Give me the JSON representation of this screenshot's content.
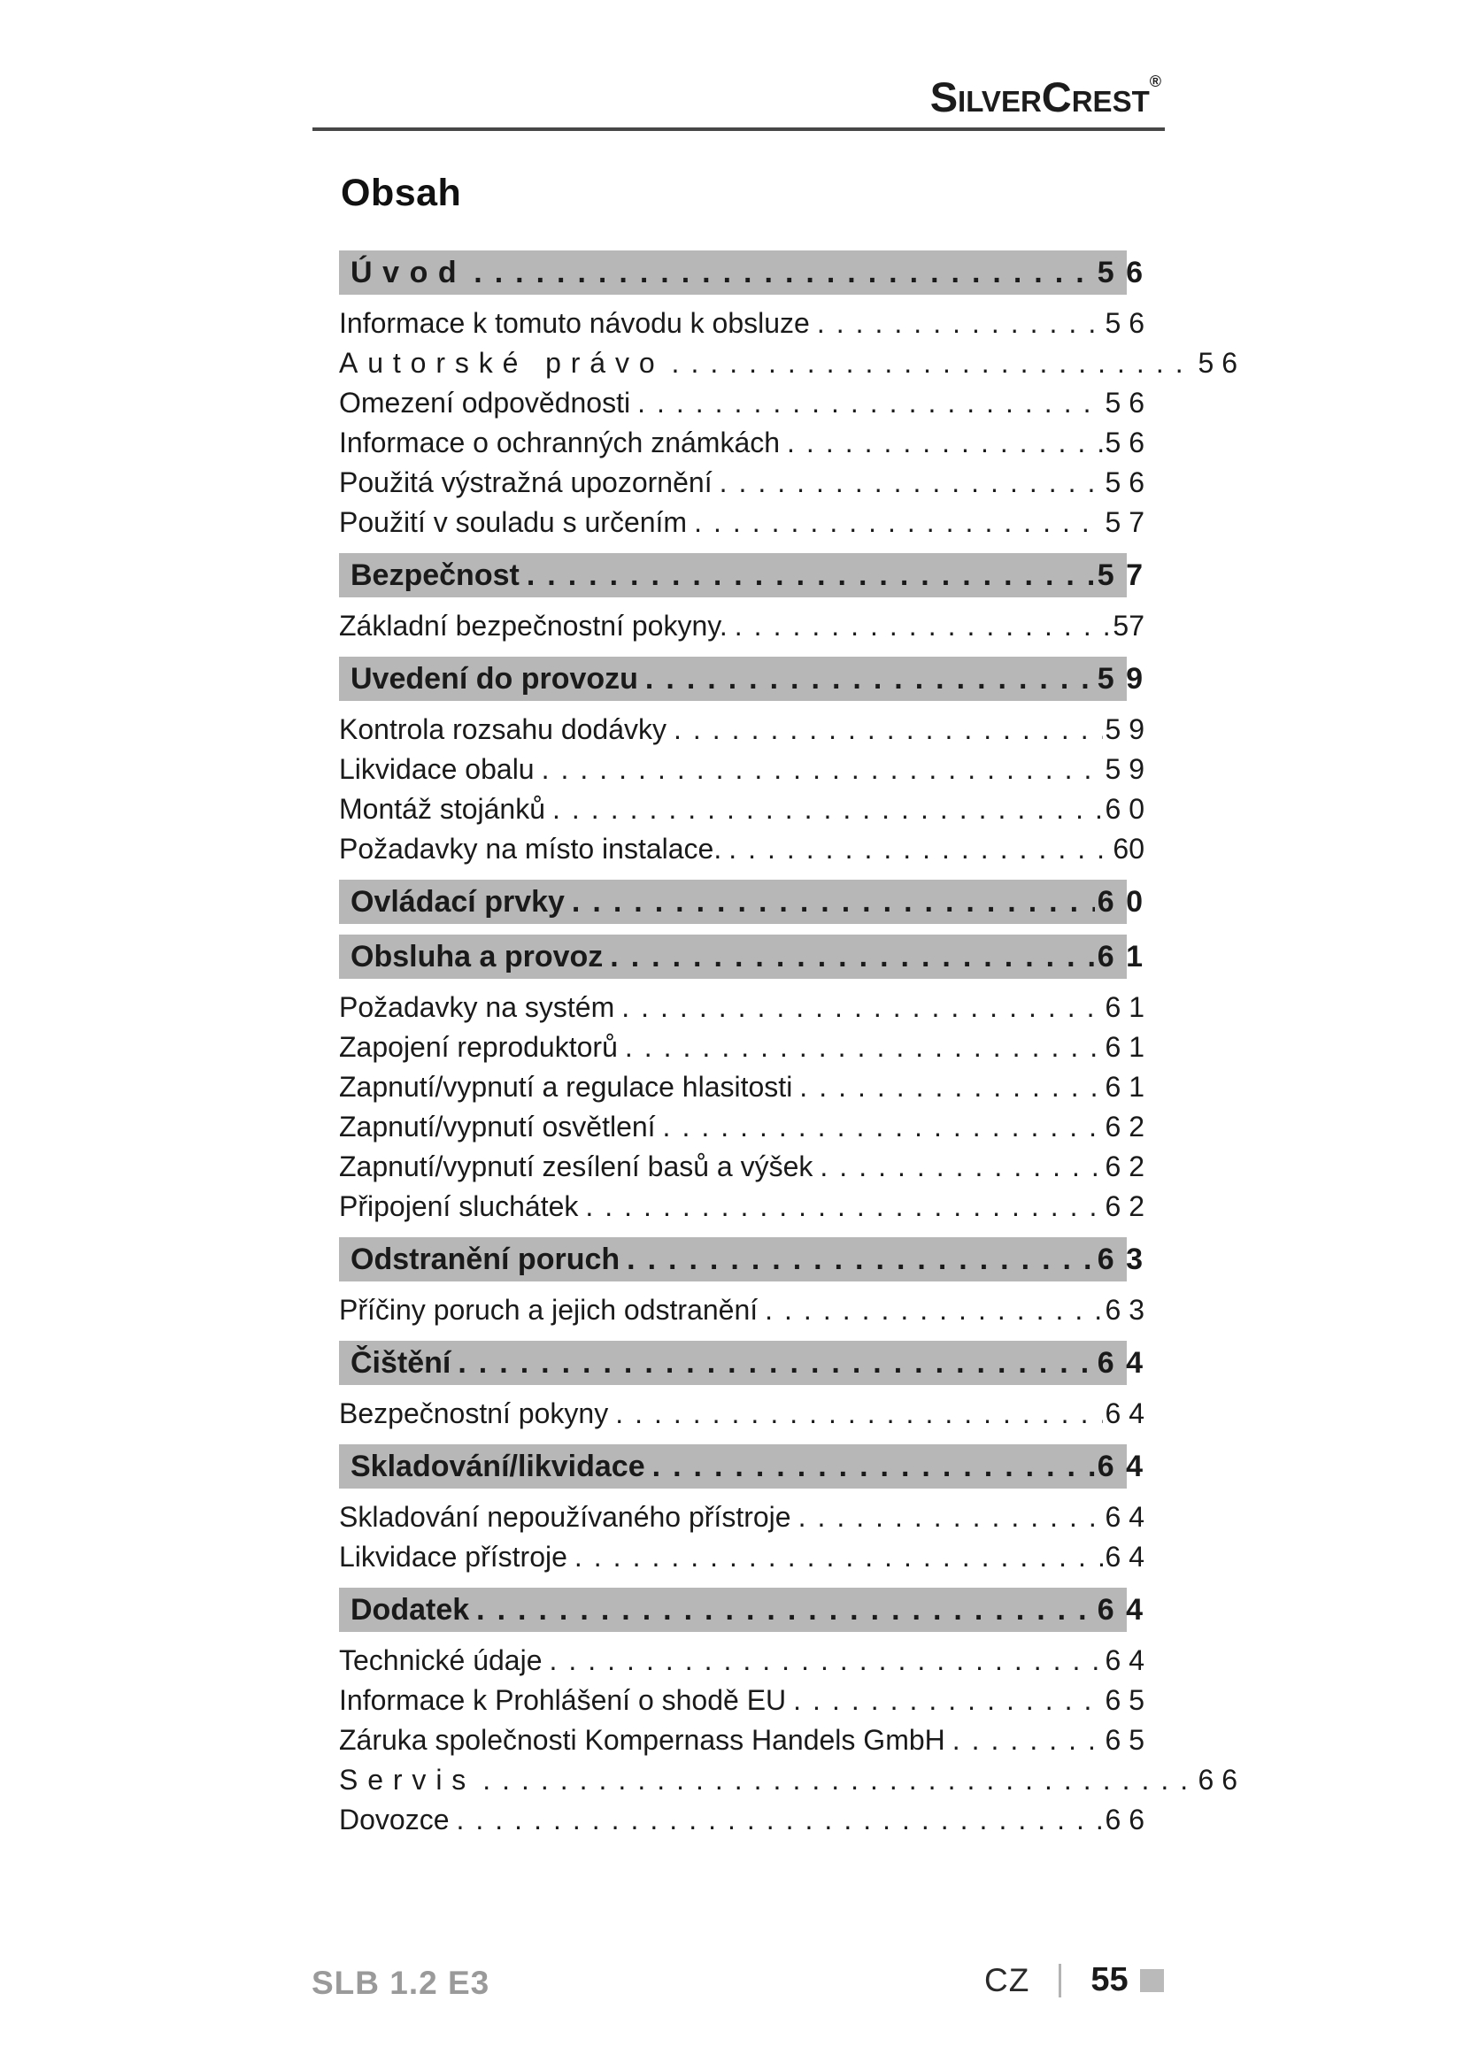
{
  "logo": {
    "brand": "SilverCrest",
    "registered": "®"
  },
  "title": "Obsah",
  "colors": {
    "section_bar_gray": "#b7b7b7",
    "text_black": "#1a1a1a",
    "footer_model_gray": "#9a9a9a",
    "footer_marker_gray": "#bababa",
    "header_rule": "#474747"
  },
  "toc": {
    "rows": [
      {
        "type": "section",
        "label": "Úvod",
        "page": "5 6",
        "spaced": true
      },
      {
        "type": "entry",
        "label": "Informace k tomuto návodu k obsluze",
        "page": "5 6"
      },
      {
        "type": "entry",
        "label": "Autorské právo",
        "page": "5 6",
        "wide": true,
        "spaced": true
      },
      {
        "type": "entry",
        "label": "Omezení odpovědnosti",
        "page": "5 6"
      },
      {
        "type": "entry",
        "label": "Informace o ochranných známkách",
        "page": "5 6"
      },
      {
        "type": "entry",
        "label": "Použitá výstražná upozornění",
        "page": "5 6"
      },
      {
        "type": "entry",
        "label": "Použití v souladu s určením",
        "page": "5 7"
      },
      {
        "type": "section",
        "label": "Bezpečnost",
        "page": "5 7"
      },
      {
        "type": "entry",
        "label": "Základní bezpečnostní pokyny.",
        "page": "57"
      },
      {
        "type": "section",
        "label": "Uvedení do provozu",
        "page": "5 9"
      },
      {
        "type": "entry",
        "label": "Kontrola rozsahu dodávky",
        "page": "5 9"
      },
      {
        "type": "entry",
        "label": "Likvidace obalu",
        "page": "5 9"
      },
      {
        "type": "entry",
        "label": "Montáž stojánků",
        "page": "6 0"
      },
      {
        "type": "entry",
        "label": "Požadavky na místo instalace.",
        "page": "60"
      },
      {
        "type": "section",
        "label": "Ovládací prvky",
        "page": "6 0"
      },
      {
        "type": "section",
        "label": "Obsluha a provoz",
        "page": "6 1"
      },
      {
        "type": "entry",
        "label": "Požadavky na systém",
        "page": "6 1"
      },
      {
        "type": "entry",
        "label": "Zapojení reproduktorů",
        "page": "6 1"
      },
      {
        "type": "entry",
        "label": "Zapnutí/vypnutí a regulace hlasitosti",
        "page": "6 1"
      },
      {
        "type": "entry",
        "label": "Zapnutí/vypnutí osvětlení",
        "page": "6 2"
      },
      {
        "type": "entry",
        "label": "Zapnutí/vypnutí zesílení basů a výšek",
        "page": "6 2"
      },
      {
        "type": "entry",
        "label": "Připojení sluchátek",
        "page": "6 2"
      },
      {
        "type": "section",
        "label": "Odstranění poruch",
        "page": "6 3"
      },
      {
        "type": "entry",
        "label": "Příčiny poruch a jejich odstranění",
        "page": "6 3"
      },
      {
        "type": "section",
        "label": "Čištění",
        "page": "6 4"
      },
      {
        "type": "entry",
        "label": "Bezpečnostní pokyny",
        "page": "6 4"
      },
      {
        "type": "section",
        "label": "Skladování/likvidace",
        "page": "6 4"
      },
      {
        "type": "entry",
        "label": "Skladování nepoužívaného přístroje",
        "page": "6 4"
      },
      {
        "type": "entry",
        "label": "Likvidace přístroje",
        "page": "6 4"
      },
      {
        "type": "section",
        "label": "Dodatek",
        "page": "6 4"
      },
      {
        "type": "entry",
        "label": "Technické údaje",
        "page": "6 4"
      },
      {
        "type": "entry",
        "label": "Informace k Prohlášení o shodě EU",
        "page": "6 5"
      },
      {
        "type": "entry",
        "label": "Záruka společnosti Kompernass Handels GmbH",
        "page": "6 5"
      },
      {
        "type": "entry",
        "label": "Servis",
        "page": "6 6",
        "wide": true,
        "spaced": true
      },
      {
        "type": "entry",
        "label": "Dovozce",
        "page": "6 6"
      }
    ]
  },
  "footer": {
    "model": "SLB 1.2 E3",
    "lang": "CZ",
    "page": "55"
  }
}
